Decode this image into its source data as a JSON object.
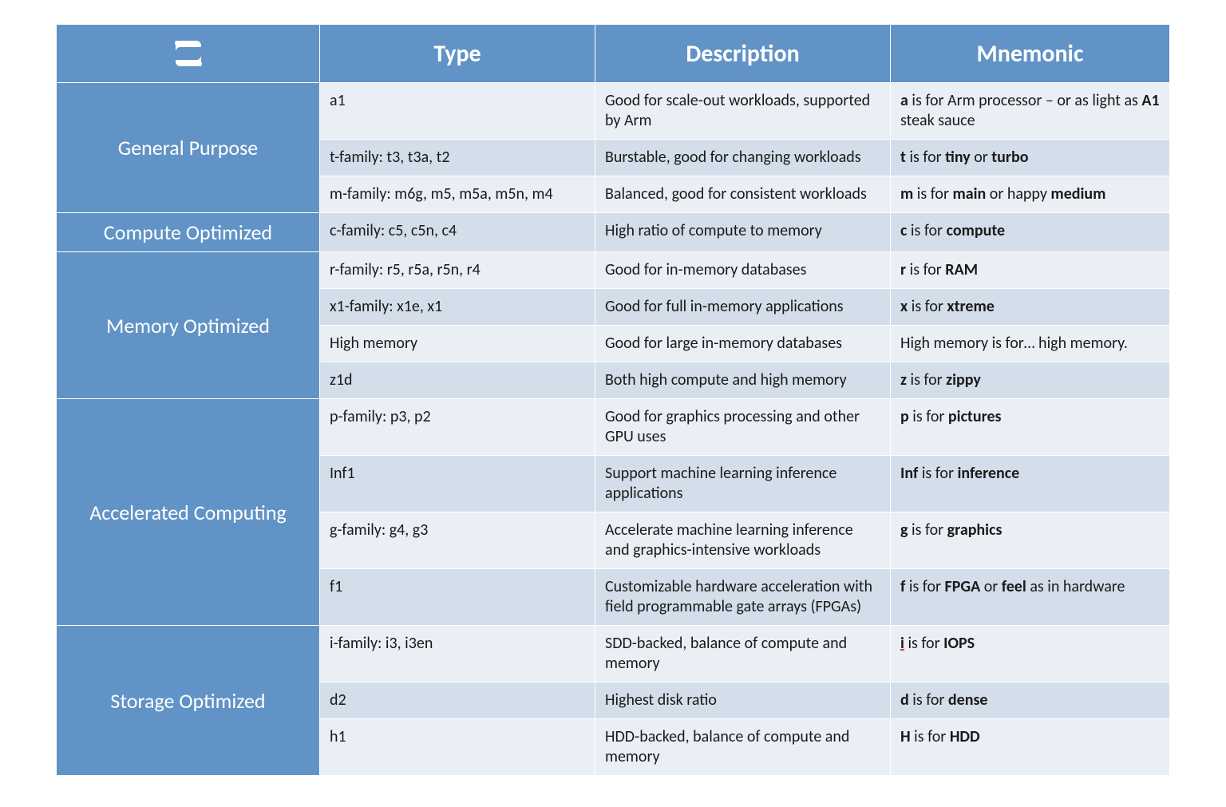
{
  "colors": {
    "header_bg": "#6193c6",
    "header_text": "#ffffff",
    "row_even_bg": "#eaeff5",
    "row_odd_bg": "#d3deea",
    "cell_text": "#1a1a1a",
    "row_border": "#ffffff"
  },
  "typography": {
    "header_fontsize": 30,
    "category_fontsize": 26,
    "cell_fontsize": 20,
    "font_family": "Calibri"
  },
  "columns": [
    {
      "key": "category",
      "label": ""
    },
    {
      "key": "type",
      "label": "Type"
    },
    {
      "key": "description",
      "label": "Description"
    },
    {
      "key": "mnemonic",
      "label": "Mnemonic"
    }
  ],
  "groups": [
    {
      "category": "General Purpose",
      "rows": [
        {
          "shade": "even",
          "type": "a1",
          "description": "Good for scale-out workloads, supported by Arm",
          "mnemonic_html": "<b>a</b> is for Arm processor  – or as light as <b>A1</b> steak sauce"
        },
        {
          "shade": "odd",
          "type": "t-family: t3, t3a, t2",
          "description": "Burstable, good for changing workloads",
          "mnemonic_html": "<b>t</b> is for <b>tiny</b> or <b>turbo</b>"
        },
        {
          "shade": "even",
          "type": "m-family: m6g, m5, m5a, m5n, m4",
          "description": "Balanced, good for consistent workloads",
          "mnemonic_html": "<b>m</b> is for <b>main</b> or happy <b>medium</b>"
        }
      ]
    },
    {
      "category": "Compute Optimized",
      "rows": [
        {
          "shade": "odd",
          "type": "c-family: c5, c5n, c4",
          "description": "High ratio of compute to memory",
          "mnemonic_html": "<b>c</b> is for <b>compute</b>"
        }
      ]
    },
    {
      "category": "Memory Optimized",
      "rows": [
        {
          "shade": "even",
          "type": "r-family: r5, r5a, r5n, r4",
          "description": "Good for in-memory databases",
          "mnemonic_html": "<b>r</b> is for <b>RAM</b>"
        },
        {
          "shade": "odd",
          "type": "x1-family: x1e, x1",
          "description": "Good for full in-memory applications",
          "mnemonic_html": "<b>x</b> is for <b>xtreme</b>"
        },
        {
          "shade": "even",
          "type": "High memory",
          "description": "Good for large in-memory databases",
          "mnemonic_html": "High memory is for… high memory."
        },
        {
          "shade": "odd",
          "type": "z1d",
          "description": "Both high compute and high memory",
          "mnemonic_html": "<b>z</b> is for <b>zippy</b>"
        }
      ]
    },
    {
      "category": "Accelerated Computing",
      "rows": [
        {
          "shade": "even",
          "type": "p-family: p3, p2",
          "description": "Good for graphics processing and other GPU uses",
          "mnemonic_html": "<b>p</b> is for <b>pictures</b>"
        },
        {
          "shade": "odd",
          "type": "Inf1",
          "description": "Support machine learning inference applications",
          "mnemonic_html": "<b>Inf</b> is for <b>inference</b>"
        },
        {
          "shade": "even",
          "type": "g-family: g4, g3",
          "description": "Accelerate machine learning inference and graphics-intensive workloads",
          "mnemonic_html": "<b>g</b> is for <b>graphics</b>"
        },
        {
          "shade": "odd",
          "type": "f1",
          "description": "Customizable hardware acceleration with field programmable gate arrays (FPGAs)",
          "mnemonic_html": "<b>f</b> is for <b>FPGA</b> or <b>feel</b> as in hardware"
        }
      ]
    },
    {
      "category": "Storage Optimized",
      "rows": [
        {
          "shade": "even",
          "type": "i-family: i3, i3en",
          "description": "SDD-backed, balance of compute and memory",
          "mnemonic_html": "<b><span class='u'>i</span></b> is for <b>IOPS</b>"
        },
        {
          "shade": "odd",
          "type": "d2",
          "description": "Highest disk ratio",
          "mnemonic_html": "<b>d</b> is for <b>dense</b>"
        },
        {
          "shade": "even",
          "type": "h1",
          "description": "HDD-backed, balance of compute and memory",
          "mnemonic_html": "<b>H</b> is for <b>HDD</b>"
        }
      ]
    }
  ]
}
